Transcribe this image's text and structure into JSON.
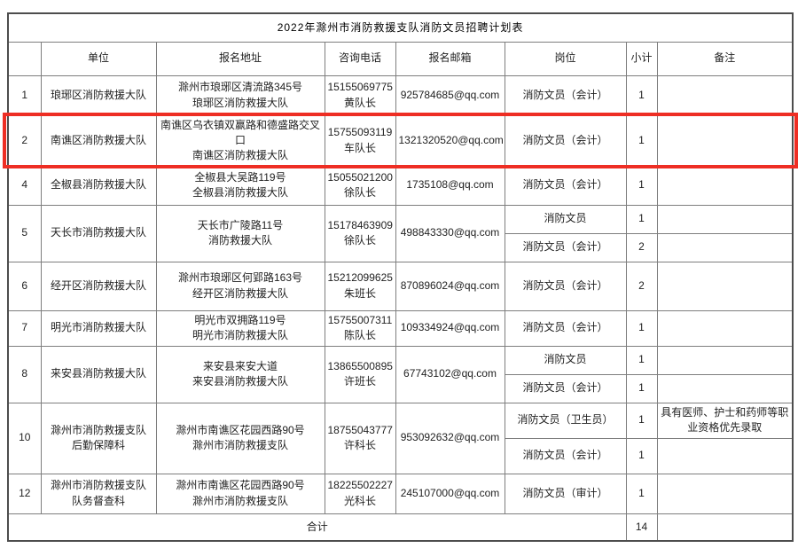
{
  "title": "2022年滁州市消防救援支队消防文员招聘计划表",
  "highlight_color": "#ee2e24",
  "table": {
    "columns": [
      "",
      "单位",
      "报名地址",
      "咨询电话",
      "报名邮箱",
      "岗位",
      "小计",
      "备注"
    ],
    "rows": [
      {
        "num": "1",
        "unit": [
          "琅琊区消防救援大队"
        ],
        "address": [
          "滁州市琅琊区清流路345号",
          "琅琊区消防救援大队"
        ],
        "phone": [
          "15155069775",
          "黄队长"
        ],
        "email": "925784685@qq.com",
        "highlighted": false,
        "positions": [
          {
            "position": "消防文员（会计）",
            "count": "1",
            "remark": ""
          }
        ]
      },
      {
        "num": "2",
        "unit": [
          "南谯区消防救援大队"
        ],
        "address": [
          "南谯区乌衣镇双赢路和德盛路交叉口",
          "南谯区消防救援大队"
        ],
        "phone": [
          "15755093119",
          "车队长"
        ],
        "email": "1321320520@qq.com",
        "highlighted": true,
        "positions": [
          {
            "position": "消防文员（会计）",
            "count": "1",
            "remark": ""
          }
        ]
      },
      {
        "num": "4",
        "unit": [
          "全椒县消防救援大队"
        ],
        "address": [
          "全椒县大吴路119号",
          "全椒县消防救援大队"
        ],
        "phone": [
          "15055021200",
          "徐队长"
        ],
        "email": "1735108@qq.com",
        "highlighted": false,
        "positions": [
          {
            "position": "消防文员（会计）",
            "count": "1",
            "remark": ""
          }
        ]
      },
      {
        "num": "5",
        "unit": [
          "天长市消防救援大队"
        ],
        "address": [
          "天长市广陵路11号",
          "消防救援大队"
        ],
        "phone": [
          "15178463909",
          "徐队长"
        ],
        "email": "498843330@qq.com",
        "highlighted": false,
        "positions": [
          {
            "position": "消防文员",
            "count": "1",
            "remark": ""
          },
          {
            "position": "消防文员（会计）",
            "count": "2",
            "remark": ""
          }
        ]
      },
      {
        "num": "6",
        "unit": [
          "经开区消防救援大队"
        ],
        "address": [
          "滁州市琅琊区何郢路163号",
          "经开区消防救援大队"
        ],
        "phone": [
          "15212099625",
          "朱班长"
        ],
        "email": "870896024@qq.com",
        "highlighted": false,
        "positions": [
          {
            "position": "消防文员（会计）",
            "count": "2",
            "remark": ""
          }
        ]
      },
      {
        "num": "7",
        "unit": [
          "明光市消防救援大队"
        ],
        "address": [
          "明光市双拥路119号",
          "明光市消防救援大队"
        ],
        "phone": [
          "15755007311",
          "陈队长"
        ],
        "email": "109334924@qq.com",
        "highlighted": false,
        "positions": [
          {
            "position": "消防文员（会计）",
            "count": "1",
            "remark": ""
          }
        ]
      },
      {
        "num": "8",
        "unit": [
          "来安县消防救援大队"
        ],
        "address": [
          "来安县来安大道",
          "来安县消防救援大队"
        ],
        "phone": [
          "13865500895",
          "许班长"
        ],
        "email": "67743102@qq.com",
        "highlighted": false,
        "positions": [
          {
            "position": "消防文员",
            "count": "1",
            "remark": ""
          },
          {
            "position": "消防文员（会计）",
            "count": "1",
            "remark": ""
          }
        ]
      },
      {
        "num": "10",
        "unit": [
          "滁州市消防救援支队",
          "后勤保障科"
        ],
        "address": [
          "滁州市南谯区花园西路90号",
          "滁州市消防救援支队"
        ],
        "phone": [
          "18755043777",
          "许科长"
        ],
        "email": "953092632@qq.com",
        "highlighted": false,
        "positions": [
          {
            "position": "消防文员（卫生员）",
            "count": "1",
            "remark": "具有医师、护士和药师等职业资格优先录取"
          },
          {
            "position": "消防文员（会计）",
            "count": "1",
            "remark": ""
          }
        ]
      },
      {
        "num": "12",
        "unit": [
          "滁州市消防救援支队",
          "队务督查科"
        ],
        "address": [
          "滁州市南谯区花园西路90号",
          "滁州市消防救援支队"
        ],
        "phone": [
          "18225502227",
          "光科长"
        ],
        "email": "245107000@qq.com",
        "highlighted": false,
        "positions": [
          {
            "position": "消防文员（审计）",
            "count": "1",
            "remark": ""
          }
        ]
      }
    ],
    "total_label": "合计",
    "total_count": "14",
    "total_remark": ""
  }
}
